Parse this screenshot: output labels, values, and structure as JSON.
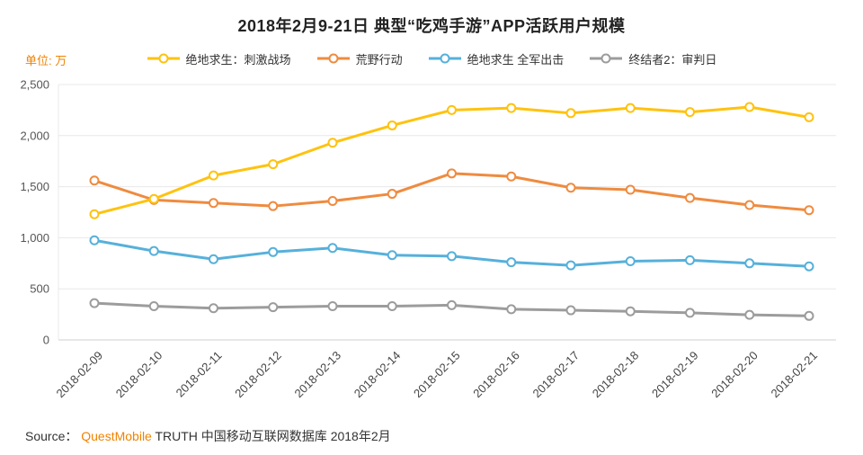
{
  "title": "2018年2月9-21日 典型“吃鸡手游”APP活跃用户规模",
  "unit_label": "单位: 万",
  "source": {
    "prefix": "Source： ",
    "brand": "QuestMobile",
    "rest": " TRUTH 中国移动互联网数据库 2018年2月"
  },
  "colors": {
    "accent_orange": "#F08300",
    "grid": "#e8e8e8",
    "axis_text": "#555555",
    "title_text": "#222222"
  },
  "chart_data": {
    "type": "line",
    "x": [
      "2018-02-09",
      "2018-02-10",
      "2018-02-11",
      "2018-02-12",
      "2018-02-13",
      "2018-02-14",
      "2018-02-15",
      "2018-02-16",
      "2018-02-17",
      "2018-02-18",
      "2018-02-19",
      "2018-02-20",
      "2018-02-21"
    ],
    "series": [
      {
        "name": "绝地求生：刺激战场",
        "color": "#FFC20E",
        "values": [
          1230,
          1380,
          1610,
          1720,
          1930,
          2100,
          2250,
          2270,
          2220,
          2270,
          2230,
          2280,
          2180
        ]
      },
      {
        "name": "荒野行动",
        "color": "#EF8B3F",
        "values": [
          1560,
          1370,
          1340,
          1310,
          1360,
          1430,
          1630,
          1600,
          1490,
          1470,
          1390,
          1320,
          1270
        ]
      },
      {
        "name": "绝地求生 全军出击",
        "color": "#56B0DB",
        "values": [
          975,
          870,
          790,
          860,
          900,
          830,
          820,
          760,
          730,
          770,
          780,
          750,
          720
        ]
      },
      {
        "name": "终结者2：审判日",
        "color": "#9C9C9C",
        "values": [
          360,
          330,
          310,
          320,
          330,
          330,
          340,
          300,
          290,
          280,
          265,
          245,
          235
        ]
      }
    ],
    "title": "2018年2月9-21日 典型“吃鸡手游”APP活跃用户规模",
    "xlabel": "",
    "ylabel": "单位: 万",
    "ylim": [
      0,
      2500
    ],
    "yticks": [
      0,
      500,
      1000,
      1500,
      2000,
      2500
    ],
    "grid": true,
    "legend_position": "top"
  }
}
